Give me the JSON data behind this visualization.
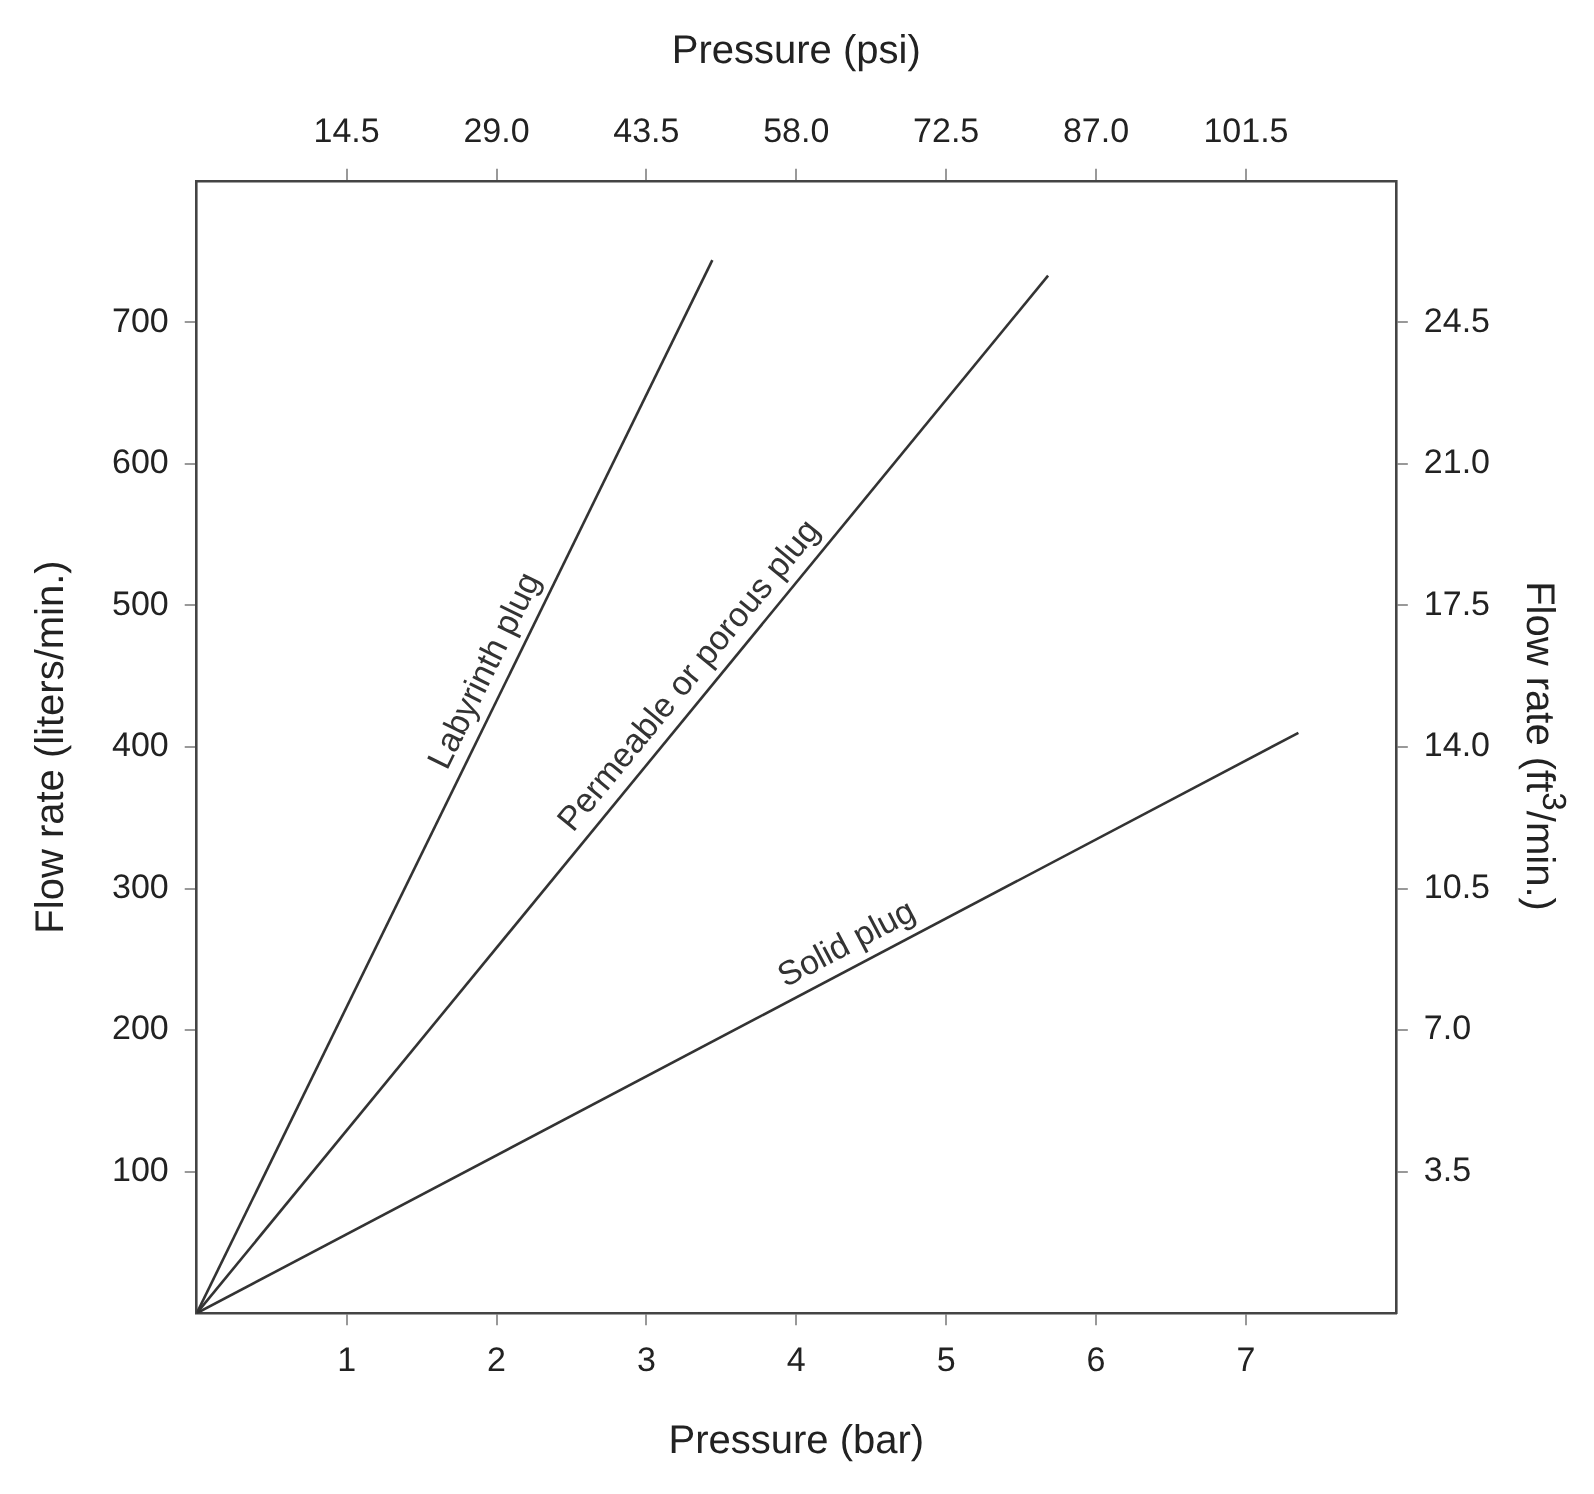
{
  "chart_data": {
    "type": "line",
    "xlabel": "Pressure (bar)",
    "x2label": "Pressure (psi)",
    "ylabel": "Flow rate (liters/min.)",
    "y2label": "Flow rate (ft$^{3}$/min.)",
    "xlim": [
      0,
      8
    ],
    "xticks": [
      1,
      2,
      3,
      4,
      5,
      6,
      7
    ],
    "x2lim": [
      0,
      116
    ],
    "x2ticks": [
      14.5,
      {
        "value": 29,
        "label": "29.0"
      },
      43.5,
      {
        "value": 58,
        "label": "58.0"
      },
      72.5,
      {
        "value": 87,
        "label": "87.0"
      },
      101.5
    ],
    "ylim": [
      0,
      800
    ],
    "yticks": [
      100,
      200,
      300,
      400,
      500,
      600,
      700
    ],
    "y2lim": [
      0,
      28
    ],
    "y2ticks": [
      3.5,
      {
        "value": 7,
        "label": "7.0"
      },
      10.5,
      {
        "value": 14,
        "label": "14.0"
      },
      17.5,
      {
        "value": 21,
        "label": "21.0"
      },
      24.5
    ],
    "grid": false,
    "legend": false,
    "marker": "none",
    "line_style": "solid",
    "series": [
      {
        "name": "Labyrinth plug",
        "color": "#333333",
        "x": [
          0,
          3.44
        ],
        "values": [
          0,
          744
        ]
      },
      {
        "name": "Permeable or porous plug",
        "color": "#333333",
        "x": [
          0,
          5.68
        ],
        "values": [
          0,
          733
        ]
      },
      {
        "name": "Solid plug",
        "color": "#333333",
        "x": [
          0,
          7.35
        ],
        "values": [
          0,
          410
        ]
      }
    ]
  }
}
